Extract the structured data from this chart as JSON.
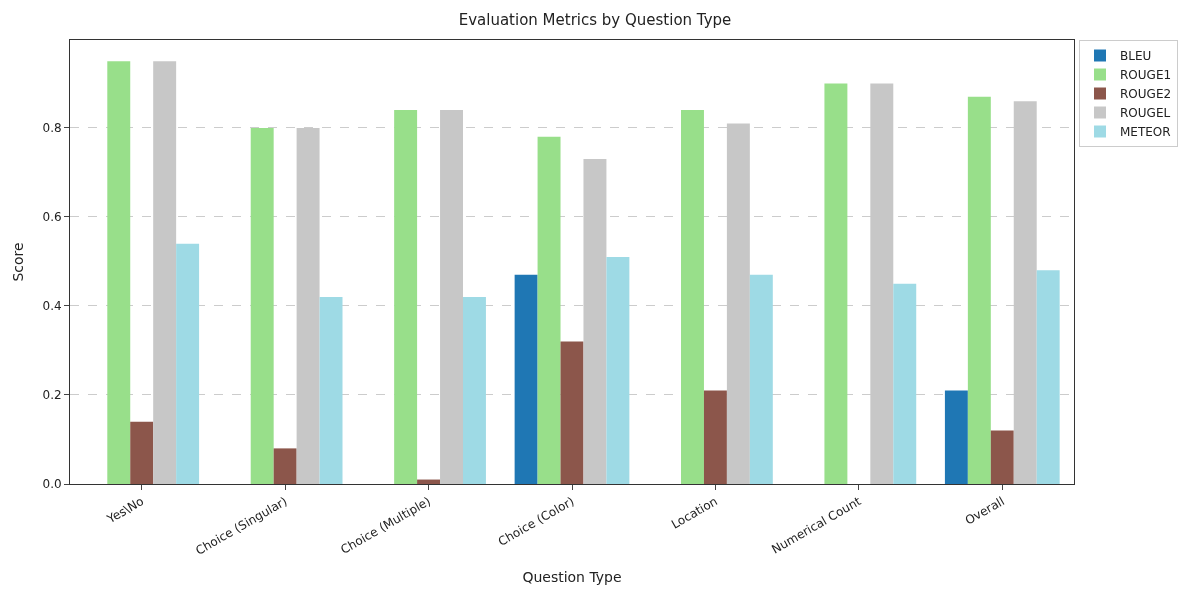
{
  "chart_data": {
    "type": "bar",
    "title": "Evaluation Metrics by Question Type",
    "xlabel": "Question Type",
    "ylabel": "Score",
    "categories": [
      "Yes\\No",
      "Choice (Singular)",
      "Choice (Multiple)",
      "Choice (Color)",
      "Location",
      "Numerical Count",
      "Overall"
    ],
    "series": [
      {
        "name": "BLEU",
        "color": "#1f77b4",
        "values": [
          0,
          0,
          0,
          0.47,
          0,
          0,
          0.21
        ]
      },
      {
        "name": "ROUGE1",
        "color": "#98df8a",
        "values": [
          0.95,
          0.8,
          0.84,
          0.78,
          0.84,
          0.9,
          0.87
        ]
      },
      {
        "name": "ROUGE2",
        "color": "#8c564b",
        "values": [
          0.14,
          0.08,
          0.01,
          0.32,
          0.21,
          0,
          0.12
        ]
      },
      {
        "name": "ROUGEL",
        "color": "#c7c7c7",
        "values": [
          0.95,
          0.8,
          0.84,
          0.73,
          0.81,
          0.9,
          0.86
        ]
      },
      {
        "name": "METEOR",
        "color": "#9edae5",
        "values": [
          0.54,
          0.42,
          0.42,
          0.51,
          0.47,
          0.45,
          0.48
        ]
      }
    ],
    "ylim": [
      0,
      0.9975
    ],
    "yticks": [
      {
        "value": 0,
        "label": "0.0"
      },
      {
        "value": 0.2,
        "label": "0.2"
      },
      {
        "value": 0.4,
        "label": "0.4"
      },
      {
        "value": 0.6,
        "label": "0.6"
      },
      {
        "value": 0.8,
        "label": "0.8"
      }
    ],
    "grid": "y",
    "legend": "top right"
  }
}
